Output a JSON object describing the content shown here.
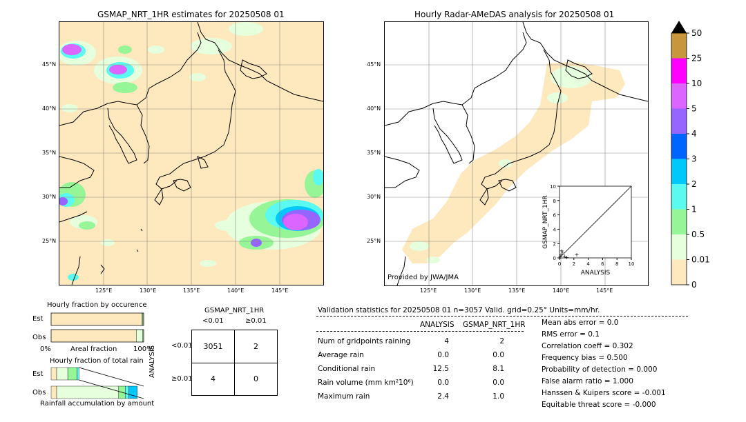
{
  "left_map": {
    "title": "GSMAP_NRT_1HR estimates for 20250508 01",
    "lat_labels": [
      "45°N",
      "40°N",
      "35°N",
      "30°N",
      "25°N"
    ],
    "lon_labels": [
      "125°E",
      "130°E",
      "135°E",
      "140°E",
      "145°E"
    ]
  },
  "right_map": {
    "title": "Hourly Radar-AMeDAS analysis for 20250508 01",
    "lat_labels": [
      "45°N",
      "40°N",
      "35°N",
      "30°N",
      "25°N"
    ],
    "lon_labels": [
      "125°E",
      "130°E",
      "135°E",
      "140°E",
      "145°E"
    ],
    "credit": "Provided by JWA/JMA"
  },
  "colorbar": {
    "levels": [
      "0",
      "0.01",
      "0.5",
      "1",
      "2",
      "3",
      "4",
      "5",
      "10",
      "25",
      "50"
    ],
    "colors": [
      "#fee8bd",
      "#e6ffdc",
      "#96f596",
      "#5afaf0",
      "#00c8fa",
      "#0064ff",
      "#9664ff",
      "#dc64ff",
      "#ff00ff",
      "#c8963c"
    ],
    "extend_color": "#000000"
  },
  "chart_data": [
    {
      "type": "scatter",
      "xlabel": "ANALYSIS",
      "ylabel": "GSMAP_NRT_1HR",
      "xlim": [
        0,
        10
      ],
      "ylim": [
        0,
        10
      ],
      "xticks": [
        "0",
        "2",
        "4",
        "6",
        "8",
        "10"
      ],
      "yticks": [
        "0",
        "2",
        "4",
        "6",
        "8",
        "10"
      ],
      "points": [
        {
          "x": 0.0,
          "y": 0.0
        },
        {
          "x": 0.1,
          "y": 0.2
        },
        {
          "x": 0.2,
          "y": 0.5
        },
        {
          "x": 0.4,
          "y": 0.8
        },
        {
          "x": 0.7,
          "y": 0.3
        },
        {
          "x": 1.0,
          "y": 0.1
        },
        {
          "x": 2.4,
          "y": 0.5
        },
        {
          "x": 0.3,
          "y": 1.0
        }
      ]
    },
    {
      "type": "bar",
      "title": "Hourly fraction by occurence",
      "categories": [
        "Est",
        "Obs"
      ],
      "xlabel": "Areal fraction",
      "x_left_label": "0%",
      "x_right_label": "100%",
      "series": [
        {
          "values": [
            0.98,
            0.92
          ],
          "color": "#fee8bd"
        },
        {
          "values": [
            0.01,
            0.07
          ],
          "color": "#e6ffdc"
        },
        {
          "values": [
            0.01,
            0.01
          ],
          "color": "#96f596"
        }
      ]
    },
    {
      "type": "bar",
      "title": "Hourly fraction of total rain",
      "categories": [
        "Est",
        "Obs"
      ],
      "xlabel": "Rainfall accumulation by amount",
      "series": [
        {
          "values": [
            0.06,
            0.06
          ],
          "color": "#fee8bd"
        },
        {
          "values": [
            0.12,
            0.67
          ],
          "color": "#e6ffdc"
        },
        {
          "values": [
            0.1,
            0.07
          ],
          "color": "#96f596"
        },
        {
          "values": [
            0.02,
            0.04
          ],
          "color": "#5afaf0"
        },
        {
          "values": [
            0.0,
            0.09
          ],
          "color": "#00c8fa"
        }
      ]
    }
  ],
  "contingency": {
    "title": "GSMAP_NRT_1HR",
    "col_lt": "<0.01",
    "col_ge": "≥0.01",
    "row_axis": "ANALYSIS",
    "row_lt": "<0.01",
    "row_ge": "≥0.01",
    "cells": [
      "3051",
      "2",
      "4",
      "0"
    ]
  },
  "validation": {
    "header": "Validation statistics for 20250508 01  n=3057 Valid. grid=0.25° Units=mm/hr.",
    "col_analysis": "ANALYSIS",
    "col_gsmap": "GSMAP_NRT_1HR",
    "rows": [
      {
        "label": "Num of gridpoints raining",
        "analysis": "4",
        "gsmap": "2"
      },
      {
        "label": "Average rain",
        "analysis": "0.0",
        "gsmap": "0.0"
      },
      {
        "label": "Conditional rain",
        "analysis": "12.5",
        "gsmap": "8.1"
      },
      {
        "label": "Rain volume (mm km²10⁶)",
        "analysis": "0.0",
        "gsmap": "0.0"
      },
      {
        "label": "Maximum rain",
        "analysis": "2.4",
        "gsmap": "1.0"
      }
    ],
    "scores": [
      "Mean abs error =    0.0",
      "RMS error =    0.1",
      "Correlation coeff =  0.302",
      "Frequency bias =  0.500",
      "Probability of detection =  0.000",
      "False alarm ratio =  1.000",
      "Hanssen & Kuipers score = -0.001",
      "Equitable threat score = -0.000"
    ]
  }
}
